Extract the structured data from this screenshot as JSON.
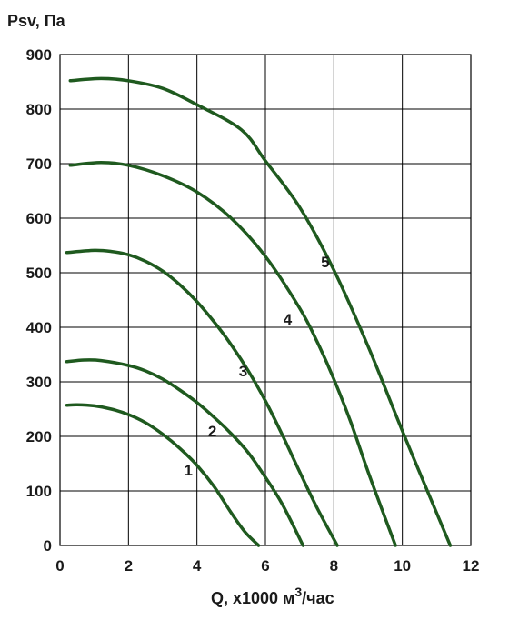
{
  "chart_data": {
    "type": "line",
    "ylabel": "Psv, Па",
    "xlabel_prefix": "Q, x1000 м",
    "xlabel_sup": "3",
    "xlabel_suffix": "/час",
    "xlim": [
      0,
      12
    ],
    "ylim": [
      0,
      900
    ],
    "xticks": [
      0,
      2,
      4,
      6,
      8,
      10,
      12
    ],
    "yticks": [
      0,
      100,
      200,
      300,
      400,
      500,
      600,
      700,
      800,
      900
    ],
    "grid": true,
    "line_color": "#1f5a1f",
    "series": [
      {
        "name": "1",
        "label_at": [
          3.75,
          138
        ],
        "x": [
          0.2,
          0.5,
          1.0,
          1.5,
          2.0,
          2.5,
          3.0,
          3.5,
          4.0,
          4.5,
          5.0,
          5.4,
          5.8
        ],
        "y": [
          257,
          258,
          256,
          250,
          240,
          225,
          204,
          178,
          147,
          108,
          60,
          25,
          0
        ]
      },
      {
        "name": "2",
        "label_at": [
          4.45,
          210
        ],
        "x": [
          0.2,
          0.7,
          1.2,
          2.0,
          2.5,
          3.0,
          3.5,
          4.0,
          4.5,
          5.0,
          5.5,
          6.0,
          6.5,
          7.1
        ],
        "y": [
          337,
          340,
          339,
          330,
          320,
          305,
          285,
          262,
          235,
          205,
          170,
          125,
          75,
          0
        ]
      },
      {
        "name": "3",
        "label_at": [
          5.35,
          320
        ],
        "x": [
          0.2,
          1.0,
          1.5,
          2.0,
          2.5,
          3.0,
          3.5,
          4.0,
          4.5,
          5.0,
          5.5,
          6.0,
          6.5,
          7.0,
          7.5,
          8.1
        ],
        "y": [
          537,
          541,
          539,
          533,
          521,
          503,
          478,
          447,
          410,
          368,
          320,
          265,
          202,
          135,
          70,
          0
        ]
      },
      {
        "name": "4",
        "label_at": [
          6.65,
          415
        ],
        "x": [
          0.3,
          1.2,
          2.0,
          3.0,
          4.0,
          5.0,
          6.0,
          7.0,
          7.5,
          8.0,
          8.5,
          9.0,
          9.5,
          9.8
        ],
        "y": [
          697,
          702,
          697,
          678,
          648,
          600,
          530,
          435,
          375,
          305,
          225,
          135,
          50,
          0
        ]
      },
      {
        "name": "5",
        "label_at": [
          7.75,
          520
        ],
        "x": [
          0.3,
          1.2,
          2.0,
          3.0,
          4.0,
          5.3,
          6.0,
          7.0,
          8.0,
          9.0,
          10.0,
          11.0,
          11.4
        ],
        "y": [
          852,
          856,
          852,
          838,
          808,
          762,
          705,
          620,
          505,
          365,
          210,
          60,
          0
        ]
      }
    ]
  }
}
